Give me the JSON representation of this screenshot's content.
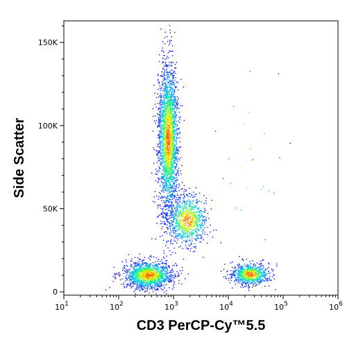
{
  "chart_data": {
    "type": "scatter",
    "subtype": "flow-cytometry density dot plot",
    "xlabel": "CD3 PerCP-Cy™5.5",
    "ylabel": "Side Scatter",
    "x_scale": "log",
    "y_scale": "linear",
    "xlim": [
      10,
      1000000
    ],
    "ylim": [
      -2000,
      163000
    ],
    "x_ticks": [
      {
        "value": 10,
        "base": "10",
        "exp": "1"
      },
      {
        "value": 100,
        "base": "10",
        "exp": "2"
      },
      {
        "value": 1000,
        "base": "10",
        "exp": "3"
      },
      {
        "value": 10000,
        "base": "10",
        "exp": "4"
      },
      {
        "value": 100000,
        "base": "10",
        "exp": "5"
      },
      {
        "value": 1000000,
        "base": "10",
        "exp": "6"
      }
    ],
    "y_ticks": [
      {
        "value": 0,
        "label": "0"
      },
      {
        "value": 50000,
        "label": "50K"
      },
      {
        "value": 100000,
        "label": "100K"
      },
      {
        "value": 150000,
        "label": "150K"
      }
    ],
    "grid": false,
    "colormap": [
      "#0000ff",
      "#00a0ff",
      "#00e0c0",
      "#40ff40",
      "#ffff00",
      "#ff8000",
      "#ff0000"
    ],
    "populations": [
      {
        "name": "",
        "x_center": 800,
        "y_center": 92000,
        "x_sd_decades": 0.09,
        "y_sd": 22000,
        "count": 2600
      },
      {
        "name": "",
        "x_center": 1800,
        "y_center": 43000,
        "x_sd_decades": 0.18,
        "y_sd": 7500,
        "count": 900
      },
      {
        "name": "",
        "x_center": 350,
        "y_center": 10000,
        "x_sd_decades": 0.22,
        "y_sd": 4000,
        "count": 1500
      },
      {
        "name": "",
        "x_center": 25000,
        "y_center": 10500,
        "x_sd_decades": 0.17,
        "y_sd": 3200,
        "count": 800
      },
      {
        "name": "",
        "x_center": 25000,
        "y_center": 80000,
        "x_sd_decades": 0.3,
        "y_sd": 30000,
        "count": 30
      }
    ]
  }
}
